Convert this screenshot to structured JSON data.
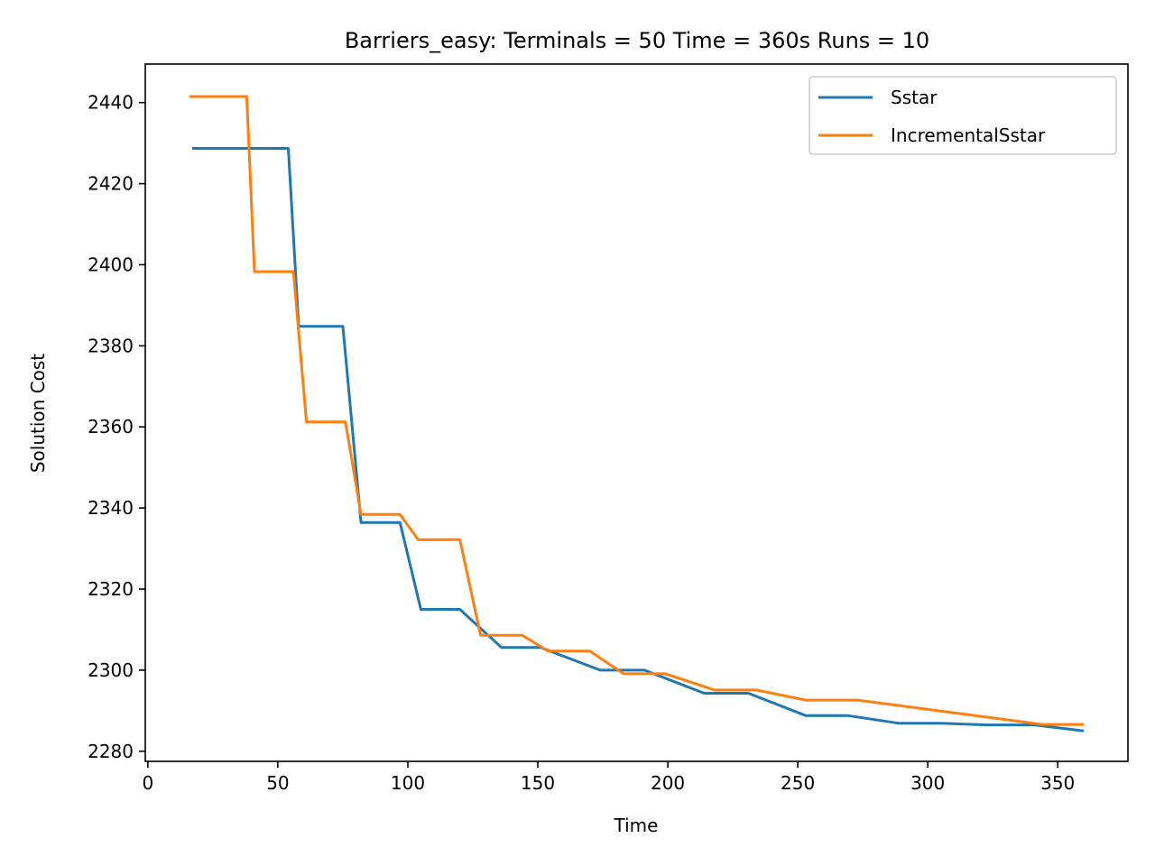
{
  "chart_data": {
    "type": "line",
    "title": "Barriers_easy:  Terminals = 50  Time = 360s  Runs = 10",
    "xlabel": "Time",
    "ylabel": "Solution Cost",
    "xlim": [
      -1,
      377
    ],
    "ylim": [
      2277.5,
      2449.5
    ],
    "xticks": [
      0,
      50,
      100,
      150,
      200,
      250,
      300,
      350
    ],
    "yticks": [
      2280,
      2300,
      2320,
      2340,
      2360,
      2380,
      2400,
      2420,
      2440
    ],
    "grid": false,
    "legend": {
      "position": "top-right"
    },
    "series": [
      {
        "name": "Sstar",
        "color": "#1f77b4",
        "points": [
          [
            17,
            2428.7
          ],
          [
            54,
            2428.7
          ],
          [
            58,
            2384.8
          ],
          [
            75,
            2384.8
          ],
          [
            82,
            2336.4
          ],
          [
            97,
            2336.4
          ],
          [
            105,
            2315.0
          ],
          [
            120,
            2315.0
          ],
          [
            136,
            2305.6
          ],
          [
            151,
            2305.6
          ],
          [
            174,
            2300.0
          ],
          [
            191,
            2300.0
          ],
          [
            214,
            2294.3
          ],
          [
            231,
            2294.3
          ],
          [
            253,
            2288.8
          ],
          [
            269,
            2288.8
          ],
          [
            289,
            2286.9
          ],
          [
            305,
            2286.9
          ],
          [
            323,
            2286.5
          ],
          [
            341,
            2286.5
          ],
          [
            360,
            2285.0
          ]
        ]
      },
      {
        "name": "IncrementalSstar",
        "color": "#ff7f0e",
        "points": [
          [
            16,
            2441.5
          ],
          [
            38,
            2441.5
          ],
          [
            41,
            2398.3
          ],
          [
            56,
            2398.3
          ],
          [
            61,
            2361.2
          ],
          [
            76,
            2361.2
          ],
          [
            82,
            2338.4
          ],
          [
            97,
            2338.4
          ],
          [
            104,
            2332.2
          ],
          [
            120,
            2332.2
          ],
          [
            128,
            2308.6
          ],
          [
            144,
            2308.6
          ],
          [
            154,
            2304.7
          ],
          [
            170,
            2304.7
          ],
          [
            183,
            2299.1
          ],
          [
            199,
            2299.1
          ],
          [
            218,
            2295.1
          ],
          [
            234,
            2295.1
          ],
          [
            253,
            2292.6
          ],
          [
            273,
            2292.6
          ],
          [
            344,
            2286.6
          ],
          [
            360,
            2286.6
          ]
        ]
      }
    ]
  }
}
